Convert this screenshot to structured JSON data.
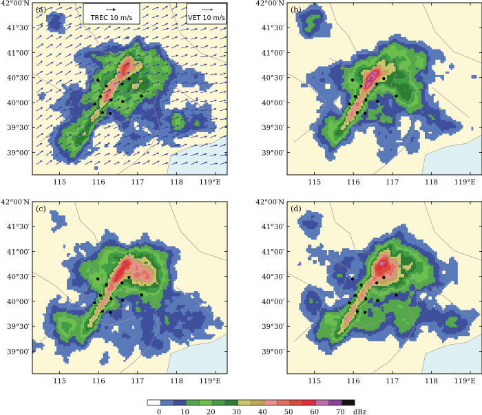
{
  "colors": {
    "land": "#fcf8d6",
    "sea": "#dff0f2",
    "boundary": "#9a9a9a",
    "station": "#000000",
    "arrow": "#3b3b9a",
    "reflectivity": [
      "#ffffff",
      "#5a79b8",
      "#3e4f9b",
      "#55a84a",
      "#6cbf4f",
      "#3f9e45",
      "#2e7d32",
      "#c9c76a",
      "#c4a35c",
      "#e6928a",
      "#e0705e",
      "#d84a3a",
      "#d9303a",
      "#c46bb0",
      "#8e3e9e",
      "#111111"
    ]
  },
  "axes": {
    "lat_ticks": [
      "42°00′N",
      "41°30′",
      "41°00′",
      "40°30′",
      "40°00′",
      "39°30′",
      "39°00′"
    ],
    "lon_ticks": [
      "115",
      "116",
      "117",
      "118",
      "119°E"
    ]
  },
  "panels": [
    {
      "label": "(a)",
      "seed": 11,
      "has_vectors": true,
      "legend_trec": "TREC 10 m/s",
      "legend_vet": "VET 10 m/s"
    },
    {
      "label": "(b)",
      "seed": 29,
      "has_vectors": false
    },
    {
      "label": "(c)",
      "seed": 47,
      "has_vectors": false
    },
    {
      "label": "(d)",
      "seed": 63,
      "has_vectors": false
    }
  ],
  "colorbar": {
    "ticks": [
      "0",
      "10",
      "20",
      "30",
      "40",
      "50",
      "60",
      "70"
    ],
    "unit": "dBz"
  },
  "stations": [
    {
      "lon": 115.98,
      "lat": 40.45
    },
    {
      "lon": 116.2,
      "lat": 40.33
    },
    {
      "lon": 116.6,
      "lat": 40.37
    },
    {
      "lon": 116.78,
      "lat": 40.48
    },
    {
      "lon": 116.05,
      "lat": 40.12
    },
    {
      "lon": 116.32,
      "lat": 40.05
    },
    {
      "lon": 116.62,
      "lat": 40.02
    },
    {
      "lon": 117.1,
      "lat": 40.13
    },
    {
      "lon": 115.9,
      "lat": 39.97
    },
    {
      "lon": 116.1,
      "lat": 39.8
    },
    {
      "lon": 116.3,
      "lat": 39.78
    }
  ]
}
